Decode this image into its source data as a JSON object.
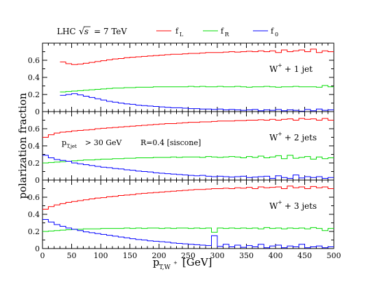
{
  "header": {
    "collider": "LHC",
    "energy_sqrt": "s",
    "energy_value": "= 7 TeV"
  },
  "legend": {
    "items": [
      {
        "key": "fL",
        "main": "f",
        "sub": "L",
        "color": "#ff0000"
      },
      {
        "key": "fR",
        "main": "f",
        "sub": "R",
        "color": "#00dd00"
      },
      {
        "key": "f0",
        "main": "f",
        "sub": "0",
        "color": "#0000ff"
      }
    ]
  },
  "annotations": {
    "cut_main": "p",
    "cut_sub": "T,jet",
    "cut_rest": "> 30 GeV",
    "cone": "R=0.4 [siscone]"
  },
  "axes": {
    "ylabel": "polarization fraction",
    "xlabel_main": "p",
    "xlabel_sub": "T,W",
    "xlabel_sup": "+",
    "xlabel_unit": "[GeV]"
  },
  "chart_data": {
    "type": "line",
    "x_bin_edges": [
      30,
      40,
      50,
      60,
      70,
      80,
      90,
      100,
      110,
      120,
      130,
      140,
      150,
      160,
      170,
      180,
      190,
      200,
      210,
      220,
      230,
      240,
      250,
      260,
      270,
      280,
      290,
      300,
      310,
      320,
      330,
      340,
      350,
      360,
      370,
      380,
      390,
      400,
      410,
      420,
      430,
      440,
      450,
      460,
      470,
      480,
      490,
      500
    ],
    "xlim": [
      0,
      500
    ],
    "xticks": [
      0,
      50,
      100,
      150,
      200,
      250,
      300,
      350,
      400,
      450,
      500
    ],
    "xtick_labels": [
      "0",
      "50",
      "100",
      "150",
      "200",
      "250",
      "300",
      "350",
      "400",
      "450",
      "500"
    ],
    "ylim": [
      0,
      0.8
    ],
    "yticks": [
      0,
      0.2,
      0.4,
      0.6
    ],
    "ytick_labels": [
      "0",
      "0.2",
      "0.4",
      "0.6"
    ],
    "panels": [
      {
        "label_main": "W",
        "label_sup": "+",
        "label_rest": "+ 1 jet",
        "series": [
          {
            "name": "fL",
            "color": "#ff0000",
            "x_start": 30,
            "values": [
              0.58,
              0.56,
              0.55,
              0.555,
              0.565,
              0.575,
              0.585,
              0.595,
              0.605,
              0.615,
              0.62,
              0.63,
              0.635,
              0.64,
              0.645,
              0.65,
              0.655,
              0.66,
              0.665,
              0.67,
              0.67,
              0.675,
              0.68,
              0.68,
              0.685,
              0.69,
              0.69,
              0.69,
              0.695,
              0.7,
              0.695,
              0.7,
              0.705,
              0.7,
              0.71,
              0.7,
              0.71,
              0.69,
              0.72,
              0.7,
              0.71,
              0.72,
              0.7,
              0.73,
              0.69,
              0.71,
              0.7
            ]
          },
          {
            "name": "fR",
            "color": "#00dd00",
            "x_start": 30,
            "values": [
              0.23,
              0.235,
              0.24,
              0.245,
              0.25,
              0.255,
              0.26,
              0.265,
              0.27,
              0.275,
              0.275,
              0.28,
              0.28,
              0.285,
              0.285,
              0.285,
              0.29,
              0.29,
              0.29,
              0.29,
              0.29,
              0.29,
              0.295,
              0.29,
              0.295,
              0.29,
              0.29,
              0.295,
              0.29,
              0.29,
              0.295,
              0.29,
              0.285,
              0.29,
              0.29,
              0.295,
              0.29,
              0.285,
              0.29,
              0.29,
              0.295,
              0.29,
              0.29,
              0.29,
              0.285,
              0.305,
              0.29
            ]
          },
          {
            "name": "f0",
            "color": "#0000ff",
            "x_start": 30,
            "values": [
              0.19,
              0.2,
              0.21,
              0.195,
              0.18,
              0.165,
              0.15,
              0.135,
              0.12,
              0.11,
              0.1,
              0.09,
              0.085,
              0.075,
              0.07,
              0.065,
              0.06,
              0.055,
              0.05,
              0.045,
              0.045,
              0.04,
              0.035,
              0.035,
              0.03,
              0.03,
              0.025,
              0.03,
              0.02,
              0.025,
              0.02,
              0.015,
              0.02,
              0.025,
              0.01,
              0.02,
              0.015,
              0.025,
              0.01,
              0.02,
              0.015,
              0.005,
              0.025,
              0.01,
              0.03,
              0.015,
              0.02
            ]
          }
        ]
      },
      {
        "label_main": "W",
        "label_sup": "+",
        "label_rest": "+ 2 jets",
        "series": [
          {
            "name": "fL",
            "color": "#ff0000",
            "x_start": 0,
            "values": [
              0.5,
              0.53,
              0.55,
              0.56,
              0.565,
              0.575,
              0.58,
              0.585,
              0.59,
              0.6,
              0.605,
              0.61,
              0.615,
              0.62,
              0.625,
              0.63,
              0.635,
              0.64,
              0.645,
              0.65,
              0.655,
              0.66,
              0.66,
              0.665,
              0.67,
              0.675,
              0.675,
              0.68,
              0.68,
              0.685,
              0.69,
              0.69,
              0.69,
              0.695,
              0.695,
              0.7,
              0.7,
              0.705,
              0.7,
              0.71,
              0.7,
              0.71,
              0.715,
              0.7,
              0.72,
              0.71,
              0.715,
              0.7,
              0.72,
              0.7
            ]
          },
          {
            "name": "fR",
            "color": "#00dd00",
            "x_start": 0,
            "values": [
              0.2,
              0.205,
              0.21,
              0.215,
              0.22,
              0.225,
              0.23,
              0.235,
              0.235,
              0.24,
              0.245,
              0.245,
              0.25,
              0.25,
              0.255,
              0.255,
              0.26,
              0.26,
              0.26,
              0.265,
              0.265,
              0.265,
              0.27,
              0.265,
              0.27,
              0.27,
              0.27,
              0.265,
              0.275,
              0.27,
              0.265,
              0.27,
              0.275,
              0.27,
              0.26,
              0.275,
              0.265,
              0.28,
              0.26,
              0.27,
              0.285,
              0.25,
              0.29,
              0.255,
              0.265,
              0.275,
              0.245,
              0.27,
              0.25,
              0.26
            ]
          },
          {
            "name": "f0",
            "color": "#0000ff",
            "x_start": 0,
            "values": [
              0.29,
              0.26,
              0.24,
              0.23,
              0.22,
              0.2,
              0.19,
              0.18,
              0.17,
              0.16,
              0.15,
              0.145,
              0.135,
              0.13,
              0.12,
              0.115,
              0.105,
              0.1,
              0.095,
              0.085,
              0.08,
              0.075,
              0.07,
              0.065,
              0.06,
              0.055,
              0.05,
              0.055,
              0.045,
              0.04,
              0.045,
              0.04,
              0.035,
              0.04,
              0.045,
              0.03,
              0.035,
              0.04,
              0.045,
              0.02,
              0.05,
              0.03,
              0.02,
              0.06,
              0.025,
              0.04,
              0.03,
              0.04,
              0.02,
              0.03
            ]
          }
        ]
      },
      {
        "label_main": "W",
        "label_sup": "+",
        "label_rest": "+ 3 jets",
        "series": [
          {
            "name": "fL",
            "color": "#ff0000",
            "x_start": 0,
            "values": [
              0.46,
              0.49,
              0.51,
              0.525,
              0.54,
              0.55,
              0.56,
              0.57,
              0.58,
              0.59,
              0.595,
              0.605,
              0.61,
              0.62,
              0.625,
              0.63,
              0.64,
              0.645,
              0.65,
              0.655,
              0.66,
              0.665,
              0.67,
              0.675,
              0.68,
              0.685,
              0.69,
              0.69,
              0.695,
              0.7,
              0.7,
              0.705,
              0.7,
              0.71,
              0.705,
              0.715,
              0.7,
              0.72,
              0.71,
              0.715,
              0.72,
              0.7,
              0.73,
              0.71,
              0.72,
              0.7,
              0.725,
              0.71,
              0.72,
              0.7
            ]
          },
          {
            "name": "fR",
            "color": "#00dd00",
            "x_start": 0,
            "values": [
              0.2,
              0.205,
              0.21,
              0.215,
              0.22,
              0.225,
              0.225,
              0.23,
              0.23,
              0.23,
              0.235,
              0.235,
              0.235,
              0.235,
              0.24,
              0.235,
              0.24,
              0.235,
              0.24,
              0.24,
              0.235,
              0.24,
              0.235,
              0.24,
              0.24,
              0.235,
              0.24,
              0.235,
              0.24,
              0.19,
              0.24,
              0.235,
              0.24,
              0.235,
              0.24,
              0.235,
              0.24,
              0.23,
              0.245,
              0.235,
              0.24,
              0.23,
              0.24,
              0.235,
              0.24,
              0.23,
              0.245,
              0.235,
              0.21,
              0.235
            ]
          },
          {
            "name": "f0",
            "color": "#0000ff",
            "x_start": 0,
            "values": [
              0.34,
              0.31,
              0.28,
              0.26,
              0.24,
              0.225,
              0.21,
              0.195,
              0.185,
              0.175,
              0.165,
              0.155,
              0.145,
              0.135,
              0.125,
              0.115,
              0.105,
              0.1,
              0.09,
              0.085,
              0.08,
              0.075,
              0.065,
              0.06,
              0.055,
              0.05,
              0.045,
              0.04,
              0.035,
              0.15,
              0.025,
              0.05,
              0.02,
              0.04,
              0.015,
              0.035,
              0.02,
              0.05,
              0.01,
              0.03,
              0.04,
              0.01,
              0.03,
              0.02,
              0.05,
              0.01,
              0.02,
              0.03,
              0.01,
              0.02
            ]
          }
        ]
      }
    ]
  }
}
